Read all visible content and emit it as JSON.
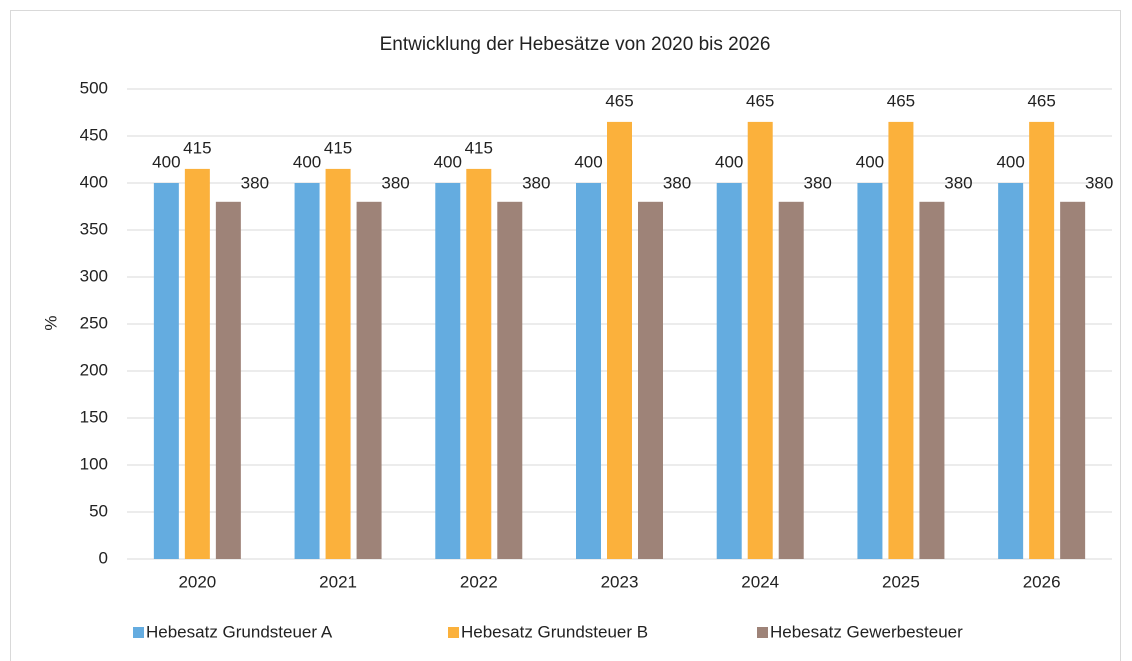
{
  "chart_data": {
    "type": "bar",
    "title": "Entwicklung der Hebesätze von 2020 bis 2026",
    "y_label": "%",
    "categories": [
      "2020",
      "2021",
      "2022",
      "2023",
      "2024",
      "2025",
      "2026"
    ],
    "series": [
      {
        "name": "Hebesatz Grundsteuer A",
        "color": "#64ace0",
        "values": [
          400,
          400,
          400,
          400,
          400,
          400,
          400
        ]
      },
      {
        "name": "Hebesatz Grundsteuer B",
        "color": "#fbb13c",
        "values": [
          415,
          415,
          415,
          465,
          465,
          465,
          465
        ]
      },
      {
        "name": "Hebesatz Gewerbesteuer",
        "color": "#9e8378",
        "values": [
          380,
          380,
          380,
          380,
          380,
          380,
          380
        ]
      }
    ],
    "ylim": [
      0,
      500
    ],
    "yticks": [
      0,
      50,
      100,
      150,
      200,
      250,
      300,
      350,
      400,
      450,
      500
    ],
    "grid": true,
    "legend": "bottom"
  }
}
